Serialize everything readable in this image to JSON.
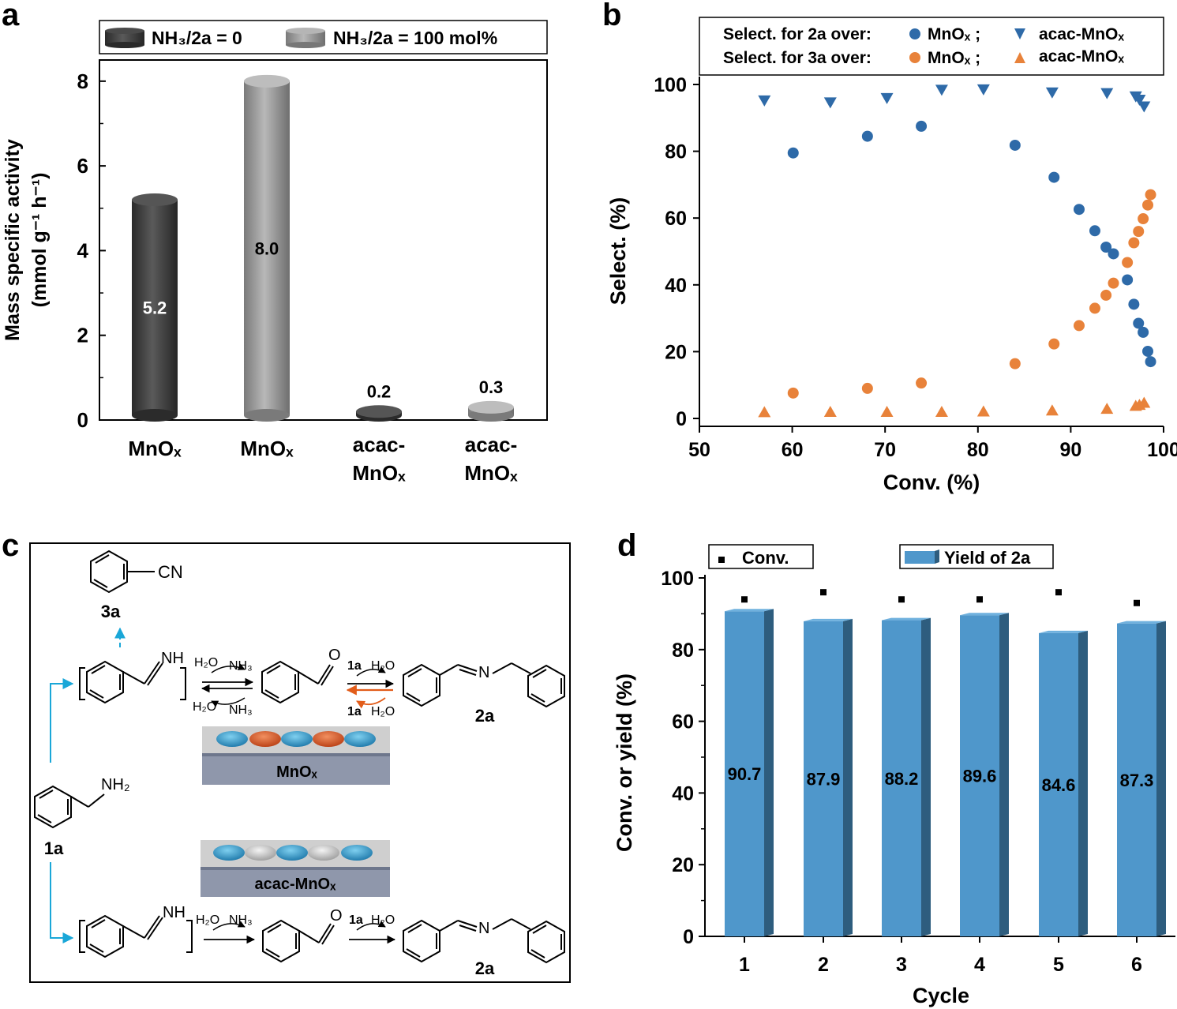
{
  "panel_labels": {
    "a": "a",
    "b": "b",
    "c": "c",
    "d": "d"
  },
  "colors": {
    "dark_bar": "#3c3c3c",
    "light_bar": "#9a9a9a",
    "blue": "#2e6aa8",
    "orange": "#e8823a",
    "bar_d": "#4f97cb",
    "bar_d_side": "#2e5d7e",
    "arrow_cyan": "#1aa7d8",
    "arrow_orange": "#e25d1a",
    "plate_top": "#cfcfcf",
    "plate_side": "#8f97ab"
  },
  "chart_data": [
    {
      "id": "a",
      "type": "bar",
      "title": "",
      "ylabel_line1": "Mass specific activity",
      "ylabel_line2": "(mmol g⁻¹ h⁻¹)",
      "ylim": [
        0,
        8.5
      ],
      "yticks": [
        0,
        2,
        4,
        6,
        8
      ],
      "legend": [
        {
          "name": "NH₃/2a = 0",
          "color": "#3c3c3c"
        },
        {
          "name": "NH₃/2a = 100 mol%",
          "color": "#9a9a9a"
        }
      ],
      "categories": [
        "MnOₓ",
        "MnOₓ",
        "acac-MnOₓ",
        "acac-MnOₓ"
      ],
      "category_lines": [
        [
          "MnOₓ"
        ],
        [
          "MnOₓ"
        ],
        [
          "acac-",
          "MnOₓ"
        ],
        [
          "acac-",
          "MnOₓ"
        ]
      ],
      "values": [
        5.2,
        8.0,
        0.2,
        0.3
      ],
      "labels": [
        "5.2",
        "8.0",
        "0.2",
        "0.3"
      ],
      "series_index": [
        0,
        1,
        0,
        1
      ]
    },
    {
      "id": "b",
      "type": "scatter",
      "xlabel": "Conv. (%)",
      "ylabel": "Select. (%)",
      "xlim": [
        50,
        100
      ],
      "ylim": [
        0,
        100
      ],
      "xticks": [
        50,
        60,
        70,
        80,
        90,
        100
      ],
      "yticks": [
        0,
        20,
        40,
        60,
        80,
        100
      ],
      "legend_row1": "Select. for 2a over:",
      "legend_row2": "Select. for 3a over:",
      "series": [
        {
          "name": "MnOₓ ;",
          "marker": "circle",
          "color": "#2e6aa8",
          "x": [
            60.1,
            68.1,
            73.9,
            84.0,
            88.2,
            90.9,
            92.6,
            93.8,
            94.6,
            96.1,
            96.8,
            97.3,
            97.8,
            98.3,
            98.6
          ],
          "y": [
            79.5,
            84.5,
            87.5,
            81.8,
            72.2,
            62.6,
            56.2,
            51.3,
            49.3,
            41.5,
            34.2,
            28.5,
            25.8,
            20.1,
            17.0
          ]
        },
        {
          "name": "acac-MnOₓ",
          "marker": "triangle-down",
          "color": "#2e6aa8",
          "x": [
            57.0,
            64.1,
            70.2,
            76.1,
            80.6,
            88.0,
            93.9,
            97.0,
            97.4,
            97.9
          ],
          "y": [
            95.3,
            94.7,
            96.0,
            98.5,
            98.6,
            97.7,
            97.5,
            96.5,
            95.5,
            93.5
          ]
        },
        {
          "name": "MnOₓ ;",
          "marker": "circle",
          "color": "#e8823a",
          "x": [
            60.1,
            68.1,
            73.9,
            84.0,
            88.2,
            90.9,
            92.6,
            93.8,
            94.6,
            96.1,
            96.8,
            97.3,
            97.8,
            98.3,
            98.6
          ],
          "y": [
            7.6,
            9.0,
            10.6,
            16.4,
            22.3,
            27.8,
            33.0,
            36.9,
            40.5,
            46.7,
            52.6,
            56.0,
            59.8,
            63.9,
            67.0
          ]
        },
        {
          "name": "acac-MnOₓ",
          "marker": "triangle-up",
          "color": "#e8823a",
          "x": [
            57.0,
            64.1,
            70.2,
            76.1,
            80.6,
            88.0,
            93.9,
            97.0,
            97.4,
            97.9
          ],
          "y": [
            1.8,
            1.9,
            1.9,
            1.9,
            2.0,
            2.3,
            2.8,
            3.7,
            4.0,
            4.6
          ]
        }
      ]
    },
    {
      "id": "d",
      "type": "bar",
      "xlabel": "Cycle",
      "ylabel": "Conv. or yield (%)",
      "ylim": [
        0,
        100
      ],
      "yticks": [
        0,
        20,
        40,
        60,
        80,
        100
      ],
      "categories": [
        "1",
        "2",
        "3",
        "4",
        "5",
        "6"
      ],
      "series": [
        {
          "name": "Yield of 2a",
          "type": "bar",
          "values": [
            90.7,
            87.9,
            88.2,
            89.6,
            84.6,
            87.3
          ]
        },
        {
          "name": "Conv.",
          "type": "scatter",
          "values": [
            94.0,
            96.0,
            94.0,
            94.0,
            96.0,
            93.0
          ]
        }
      ],
      "labels": [
        "90.7",
        "87.9",
        "88.2",
        "89.6",
        "84.6",
        "87.3"
      ]
    }
  ],
  "scheme": {
    "label_3a": "3a",
    "label_1a": "1a",
    "label_2a_top": "2a",
    "label_2a_bottom": "2a",
    "cn": "CN",
    "nh2": "NH₂",
    "nh_top": "NH",
    "nh_bottom": "NH",
    "o_top": "O",
    "o_bottom": "O",
    "n_top": "N",
    "n_bottom": "N",
    "h2o": "H₂O",
    "nh3": "NH₃",
    "reagent_1a": "1a",
    "plate_top_label": "MnOₓ",
    "plate_bottom_label": "acac-MnOₓ"
  }
}
